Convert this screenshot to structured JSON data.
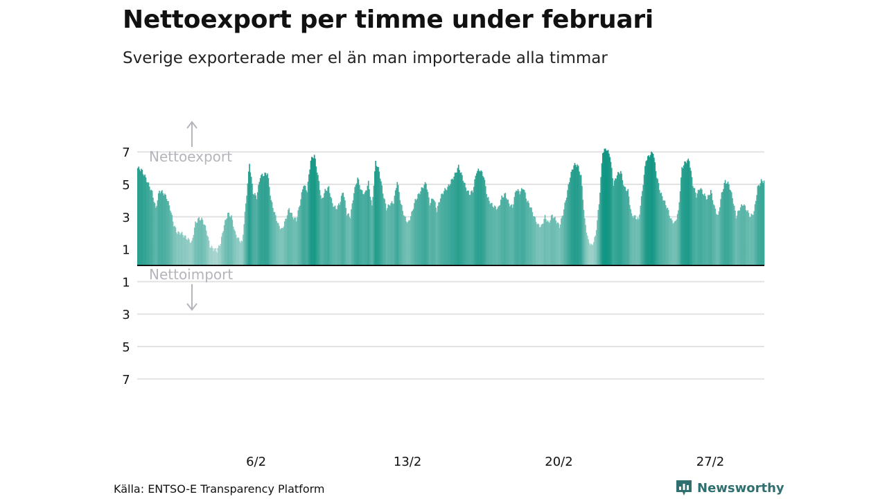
{
  "title": "Nettoexport per timme under februari",
  "subtitle": "Sverige exporterade mer el än man importerade alla timmar",
  "source": "Källa: ENTSO-E Transparency Platform",
  "logo": {
    "name": "Newsworthy",
    "icon": "newsworthy-logo-icon",
    "color": "#2f6f6f"
  },
  "chart_data": {
    "type": "bar",
    "x_range": [
      "1/2",
      "29/2"
    ],
    "x_ticks": [
      "6/2",
      "13/2",
      "20/2",
      "27/2"
    ],
    "y_range": [
      -7,
      7.5
    ],
    "y_ticks": [
      {
        "value": 7,
        "label": "7"
      },
      {
        "value": 5,
        "label": "5"
      },
      {
        "value": 3,
        "label": "3"
      },
      {
        "value": 1,
        "label": "1"
      },
      {
        "value": -1,
        "label": "1"
      },
      {
        "value": -3,
        "label": "3"
      },
      {
        "value": -5,
        "label": "5"
      },
      {
        "value": -7,
        "label": "7"
      }
    ],
    "annotations": {
      "positive": "Nettoexport",
      "negative": "Nettoimport"
    },
    "grid": true,
    "colors": {
      "high": "#0f9482",
      "low": "#b9ddd8",
      "grid": "#e2e2e2",
      "zero": "#111111",
      "annotation": "#b4b4bc"
    },
    "daily_profiles": [
      [
        6.0,
        5.9,
        5.5,
        5.0,
        4.5,
        3.5
      ],
      [
        4.6,
        4.5,
        4.2,
        3.5,
        2.5,
        2.0
      ],
      [
        2.0,
        1.8,
        1.6,
        1.4,
        2.6,
        2.9
      ],
      [
        2.8,
        2.2,
        1.2,
        1.0,
        0.9,
        1.4
      ],
      [
        2.5,
        3.2,
        3.0,
        2.0,
        1.6,
        1.4
      ],
      [
        3.8,
        6.3,
        4.5,
        4.2,
        5.5,
        5.6
      ],
      [
        5.7,
        4.0,
        3.2,
        2.5,
        2.2,
        2.8
      ],
      [
        3.5,
        3.0,
        2.8,
        3.8,
        5.0,
        4.6
      ],
      [
        6.5,
        6.8,
        5.5,
        4.0,
        4.6,
        4.8
      ],
      [
        3.8,
        3.5,
        3.8,
        4.6,
        3.2,
        3.0
      ],
      [
        4.5,
        5.4,
        4.6,
        4.4,
        5.1,
        3.6
      ],
      [
        6.4,
        5.8,
        4.5,
        3.5,
        3.8,
        3.9
      ],
      [
        5.2,
        3.8,
        3.0,
        2.6,
        3.2,
        4.0
      ],
      [
        4.4,
        4.8,
        5.1,
        3.8,
        4.2,
        3.4
      ],
      [
        4.2,
        4.6,
        4.8,
        5.2,
        5.6,
        6.1
      ],
      [
        5.5,
        4.8,
        4.4,
        4.6,
        5.8,
        5.9
      ],
      [
        5.5,
        4.2,
        3.8,
        3.6,
        3.5,
        4.2
      ],
      [
        4.4,
        3.8,
        3.6,
        4.7,
        4.5,
        4.8
      ],
      [
        4.0,
        3.6,
        3.0,
        2.5,
        2.4,
        3.0
      ],
      [
        2.6,
        3.1,
        2.8,
        2.4,
        3.2,
        4.3
      ],
      [
        5.5,
        6.2,
        6.2,
        5.5,
        2.8,
        1.5
      ],
      [
        1.2,
        1.8,
        3.8,
        7.0,
        7.2,
        6.8
      ],
      [
        5.0,
        5.6,
        5.8,
        4.8,
        4.6,
        3.1
      ],
      [
        3.0,
        2.8,
        4.6,
        6.5,
        6.8,
        7.0
      ],
      [
        5.5,
        4.5,
        4.0,
        3.5,
        2.8,
        2.6
      ],
      [
        3.3,
        6.0,
        6.4,
        6.5,
        5.0,
        4.3
      ],
      [
        4.8,
        4.4,
        4.1,
        4.6,
        3.6,
        3.0
      ],
      [
        4.4,
        5.2,
        5.0,
        4.2,
        3.0,
        3.5
      ],
      [
        3.8,
        3.4,
        3.0,
        3.3,
        4.8,
        5.2
      ]
    ]
  }
}
